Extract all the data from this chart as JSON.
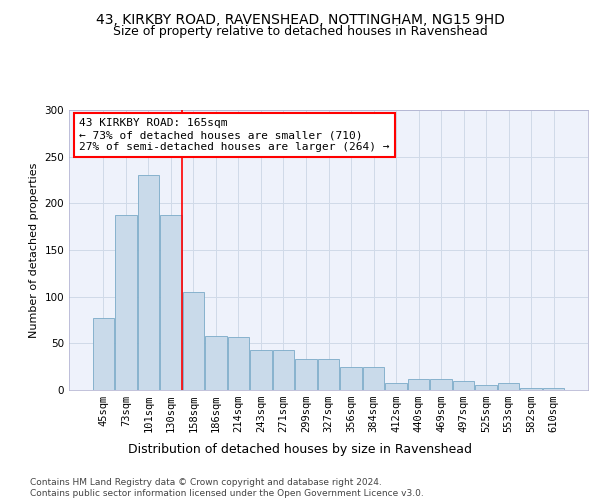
{
  "title1": "43, KIRKBY ROAD, RAVENSHEAD, NOTTINGHAM, NG15 9HD",
  "title2": "Size of property relative to detached houses in Ravenshead",
  "xlabel": "Distribution of detached houses by size in Ravenshead",
  "ylabel": "Number of detached properties",
  "categories": [
    "45sqm",
    "73sqm",
    "101sqm",
    "130sqm",
    "158sqm",
    "186sqm",
    "214sqm",
    "243sqm",
    "271sqm",
    "299sqm",
    "327sqm",
    "356sqm",
    "384sqm",
    "412sqm",
    "440sqm",
    "469sqm",
    "497sqm",
    "525sqm",
    "553sqm",
    "582sqm",
    "610sqm"
  ],
  "values": [
    77,
    187,
    230,
    187,
    105,
    58,
    57,
    43,
    43,
    33,
    33,
    25,
    25,
    8,
    12,
    12,
    10,
    5,
    7,
    2,
    2
  ],
  "bar_color": "#c9daea",
  "bar_edge_color": "#7aaac8",
  "grid_color": "#d0dae8",
  "background_color": "#eef2fb",
  "annotation_text": "43 KIRKBY ROAD: 165sqm\n← 73% of detached houses are smaller (710)\n27% of semi-detached houses are larger (264) →",
  "annotation_box_color": "white",
  "annotation_box_edge_color": "red",
  "property_line_color": "red",
  "ylim": [
    0,
    300
  ],
  "yticks": [
    0,
    50,
    100,
    150,
    200,
    250,
    300
  ],
  "footnote": "Contains HM Land Registry data © Crown copyright and database right 2024.\nContains public sector information licensed under the Open Government Licence v3.0.",
  "title_fontsize": 10,
  "subtitle_fontsize": 9,
  "xlabel_fontsize": 9,
  "ylabel_fontsize": 8,
  "tick_fontsize": 7.5,
  "annotation_fontsize": 8,
  "footnote_fontsize": 6.5
}
